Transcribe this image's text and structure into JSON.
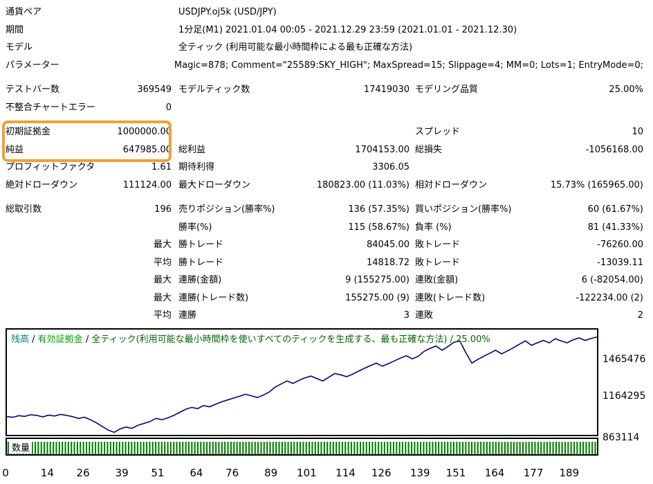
{
  "report": {
    "highlight_color": "#f0a232",
    "rows": [
      {
        "l1": "通貨ペア",
        "span": "USDJPY.oj5k (USD/JPY)"
      },
      {
        "l1": "期間",
        "span": "1分足(M1) 2021.01.04 00:05 - 2021.12.29 23:59 (2021.01.01 - 2021.12.30)"
      },
      {
        "l1": "モデル",
        "span": "全ティック (利用可能な最小時間枠による最も正確な方法)"
      },
      {
        "l1": "パラメーター",
        "span": "Magic=878; Comment=\"25589:SKY_HIGH\"; MaxSpread=15; Slippage=4; MM=0; Lots=1; EntryMode=0;"
      },
      {
        "gap": true,
        "l1": "テストバー数",
        "v1": "369549",
        "l2": "モデルティック数",
        "v2": "17419030",
        "l3": "モデリング品質",
        "v3": "25.00%"
      },
      {
        "l1": "不整合チャートエラー",
        "v1": "0"
      },
      {
        "gap": true,
        "l1": "初期証拠金",
        "v1": "1000000.00",
        "l3": "スプレッド",
        "v3": "10"
      },
      {
        "l1": "純益",
        "v1": "647985.00",
        "l2": "総利益",
        "v2": "1704153.00",
        "l3": "総損失",
        "v3": "-1056168.00"
      },
      {
        "l1": "プロフィットファクタ",
        "v1": "1.61",
        "l2": "期待利得",
        "v2": "3306.05"
      },
      {
        "l1": "絶対ドローダウン",
        "v1": "111124.00",
        "l2": "最大ドローダウン",
        "v2": "180823.00 (11.03%)",
        "l3": "相対ドローダウン",
        "v3": "15.73% (165965.00)"
      },
      {
        "gap": true,
        "l1": "総取引数",
        "v1": "196",
        "l2": "売りポジション(勝率%)",
        "v2": "136 (57.35%)",
        "l3": "買いポジション(勝率%)",
        "v3": "60 (61.67%)"
      },
      {
        "l2": "勝率(%)",
        "v2": "115 (58.67%)",
        "l3": "負率 (%)",
        "v3": "81 (41.33%)"
      },
      {
        "v1": "最大",
        "l2": "勝トレード",
        "v2": "84045.00",
        "l3": "敗トレード",
        "v3": "-76260.00"
      },
      {
        "v1": "平均",
        "l2": "勝トレード",
        "v2": "14818.72",
        "l3": "敗トレード",
        "v3": "-13039.11"
      },
      {
        "v1": "最大",
        "l2": "連勝(金額)",
        "v2": "9 (155275.00)",
        "l3": "連敗(金額)",
        "v3": "6 (-82054.00)"
      },
      {
        "v1": "最大",
        "l2": "連勝(トレード数)",
        "v2": "155275.00 (9)",
        "l3": "連敗(トレード数)",
        "v3": "-122234.00 (2)"
      },
      {
        "v1": "平均",
        "l2": "連勝",
        "v2": "3",
        "l3": "連敗",
        "v3": "2"
      }
    ]
  },
  "graph": {
    "legend": {
      "balance_label": "残高",
      "equity_label": "有効証拠金",
      "model_label": "全ティック(利用可能な最小時間枠を使いすべてのティックを生成する、最も正確な方法)",
      "quality_label": "25.00%",
      "separator": " / "
    },
    "lots_label": "数量",
    "y_labels": [
      "1465476",
      "1164295",
      "863114"
    ],
    "x_labels": [
      0,
      14,
      26,
      39,
      51,
      64,
      76,
      89,
      101,
      114,
      126,
      139,
      151,
      164,
      177,
      189
    ],
    "colors": {
      "balance_line": "#000080",
      "balance_text": "#008080",
      "equity_text": "#00a000",
      "model_text": "#006400",
      "lots_bar": "#008000"
    },
    "chart_data": {
      "type": "line",
      "title": "残高 / 有効証拠金",
      "x_max": 196,
      "x_ticks": [
        0,
        14,
        26,
        39,
        51,
        64,
        76,
        89,
        101,
        114,
        126,
        139,
        151,
        164,
        177,
        189
      ],
      "y_ticks": [
        863114,
        1164295,
        1465476
      ],
      "series": [
        {
          "name": "残高",
          "values": [
            1000000,
            995000,
            1008000,
            1002000,
            1015000,
            1010000,
            998000,
            1012000,
            1005000,
            1018000,
            1010000,
            1000000,
            985000,
            995000,
            975000,
            950000,
            920000,
            890000,
            872000,
            900000,
            915000,
            905000,
            930000,
            945000,
            960000,
            985000,
            975000,
            990000,
            1010000,
            1035000,
            1060000,
            1075000,
            1065000,
            1090000,
            1080000,
            1100000,
            1120000,
            1135000,
            1150000,
            1165000,
            1182000,
            1170000,
            1155000,
            1175000,
            1200000,
            1240000,
            1265000,
            1290000,
            1270000,
            1295000,
            1315000,
            1330000,
            1310000,
            1290000,
            1320000,
            1350000,
            1340000,
            1325000,
            1345000,
            1370000,
            1393000,
            1415000,
            1435000,
            1410000,
            1430000,
            1453000,
            1475000,
            1495000,
            1470000,
            1490000,
            1531000,
            1555000,
            1574000,
            1540000,
            1570000,
            1604000,
            1615000,
            1520000,
            1435000,
            1465000,
            1490000,
            1515000,
            1540000,
            1510000,
            1535000,
            1560000,
            1590000,
            1616000,
            1580000,
            1600000,
            1620000,
            1600000,
            1634000,
            1615000,
            1600000,
            1625000,
            1640000,
            1620000,
            1635000,
            1647985
          ]
        }
      ],
      "lots": {
        "name": "数量",
        "count": 196,
        "constant_value": 1
      }
    }
  }
}
